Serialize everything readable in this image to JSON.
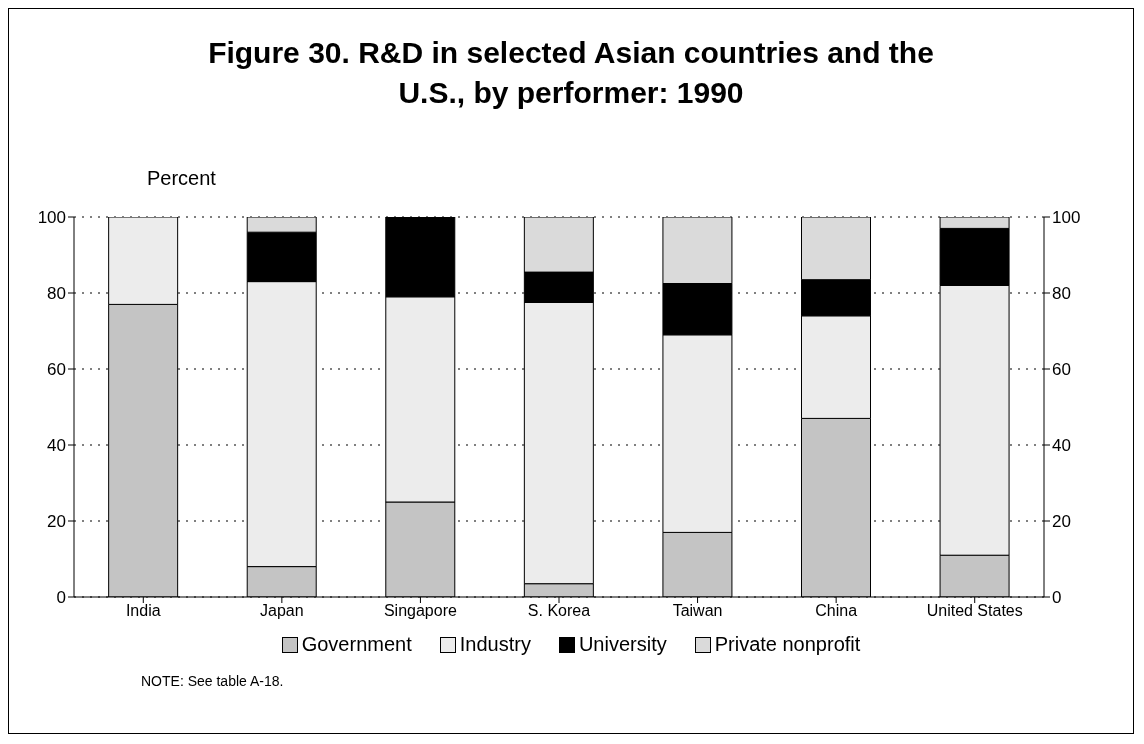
{
  "chart_data": {
    "type": "bar",
    "title": "Figure 30.  R&D in selected Asian countries and the U.S., by performer:  1990",
    "ylabel": "Percent",
    "categories": [
      "India",
      "Japan",
      "Singapore",
      "S. Korea",
      "Taiwan",
      "China",
      "United States"
    ],
    "stacked": true,
    "series": [
      {
        "name": "Government",
        "color": "#c4c4c4",
        "values": [
          77,
          8,
          25,
          3.5,
          17,
          47,
          11
        ]
      },
      {
        "name": "Industry",
        "color": "#ececec",
        "values": [
          23,
          75,
          54,
          74,
          52,
          27,
          71
        ]
      },
      {
        "name": "University",
        "color": "#000000",
        "values": [
          0,
          13,
          21,
          8,
          13.5,
          9.5,
          15
        ]
      },
      {
        "name": "Private nonprofit",
        "color": "#dadada",
        "values": [
          0,
          4,
          0,
          14.5,
          17.5,
          16.5,
          3
        ]
      }
    ],
    "ylim": [
      0,
      100
    ],
    "yticks": [
      0,
      20,
      40,
      60,
      80,
      100
    ],
    "y2lim": [
      0,
      100
    ],
    "y2ticks": [
      0,
      20,
      40,
      60,
      80,
      100
    ],
    "grid": "y",
    "line_style": "dotted",
    "legend": "bottom",
    "annotations": [
      "NOTE:  See table A-18."
    ]
  }
}
